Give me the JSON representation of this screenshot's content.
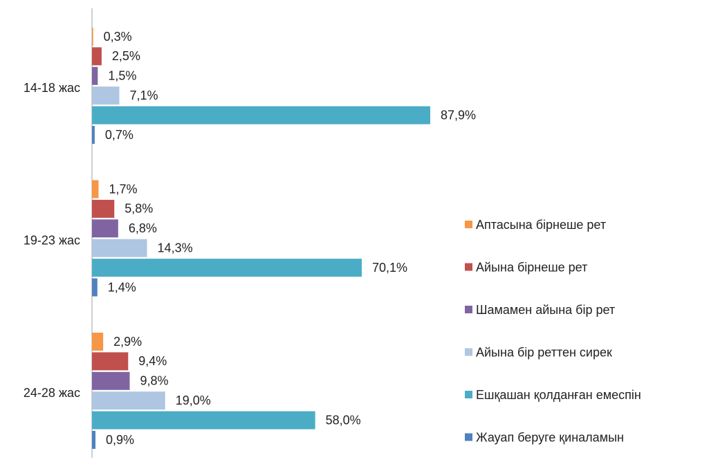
{
  "chart_data": {
    "type": "bar",
    "orientation": "horizontal",
    "categories": [
      "14-18 жас",
      "19-23 жас",
      "24-28 жас"
    ],
    "series": [
      {
        "name": "Аптасына бірнеше рет",
        "color": "#f79646",
        "values": [
          0.3,
          1.7,
          2.9
        ],
        "value_labels": [
          "0,3%",
          "1,7%",
          "2,9%"
        ]
      },
      {
        "name": "Айына бірнеше рет",
        "color": "#c0504d",
        "values": [
          2.5,
          5.8,
          9.4
        ],
        "value_labels": [
          "2,5%",
          "5,8%",
          "9,4%"
        ]
      },
      {
        "name": "Шамамен айына бір рет",
        "color": "#8064a2",
        "values": [
          1.5,
          6.8,
          9.8
        ],
        "value_labels": [
          "1,5%",
          "6,8%",
          "9,8%"
        ]
      },
      {
        "name": "Айына бір реттен сирек",
        "color": "#aec6e1",
        "values": [
          7.1,
          14.3,
          19.0
        ],
        "value_labels": [
          "7,1%",
          "14,3%",
          "19,0%"
        ]
      },
      {
        "name": "Ешқашан қолданған емеспін",
        "color": "#4bacc6",
        "values": [
          87.9,
          70.1,
          58.0
        ],
        "value_labels": [
          "87,9%",
          "70,1%",
          "58,0%"
        ]
      },
      {
        "name": "Жауап беруге қиналамын",
        "color": "#4f81bd",
        "values": [
          0.7,
          1.4,
          0.9
        ],
        "value_labels": [
          "0,7%",
          "1,4%",
          "0,9%"
        ]
      }
    ],
    "legend": "right"
  }
}
